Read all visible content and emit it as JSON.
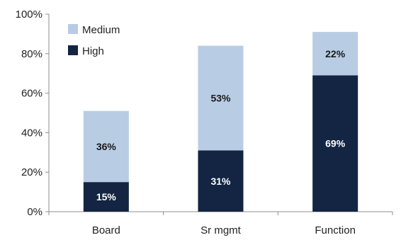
{
  "chart_data": {
    "type": "bar",
    "stacked": true,
    "categories": [
      "Board",
      "Sr mgmt",
      "Function"
    ],
    "series": [
      {
        "name": "High",
        "values": [
          15,
          31,
          69
        ],
        "labels": [
          "15%",
          "31%",
          "69%"
        ],
        "color": "#132542",
        "label_color": "#ffffff"
      },
      {
        "name": "Medium",
        "values": [
          36,
          53,
          22
        ],
        "labels": [
          "36%",
          "53%",
          "22%"
        ],
        "color": "#b8cce4",
        "label_color": "#1a1a1a"
      }
    ],
    "ylim": [
      0,
      100
    ],
    "yticks": [
      0,
      20,
      40,
      60,
      80,
      100
    ],
    "ytick_labels": [
      "0%",
      "20%",
      "40%",
      "60%",
      "80%",
      "100%"
    ],
    "title": "",
    "xlabel": "",
    "ylabel": "",
    "grid": false,
    "legend": {
      "placement": "top-left",
      "order": [
        "Medium",
        "High"
      ]
    }
  }
}
